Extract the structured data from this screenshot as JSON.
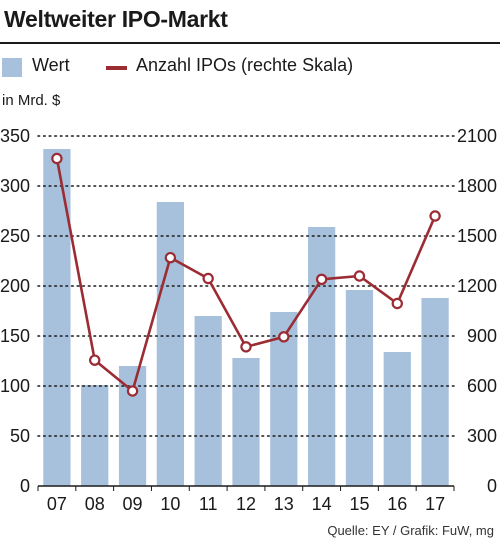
{
  "header": {
    "title": "Weltweiter IPO-Markt"
  },
  "legend": {
    "bar_label": "Wert",
    "line_label": "Anzahl IPOs (rechte Skala)"
  },
  "unit_label": "in Mrd. $",
  "source": "Quelle: EY / Grafik: FuW, mg",
  "colors": {
    "bar": "#a7c0dc",
    "line": "#9b2c34",
    "marker_fill": "#ffffff"
  },
  "chart_data": {
    "type": "bar",
    "title": "Weltweiter IPO-Markt",
    "categories": [
      "07",
      "08",
      "09",
      "10",
      "11",
      "12",
      "13",
      "14",
      "15",
      "16",
      "17"
    ],
    "grid": true,
    "legend_position": "top-left",
    "y_left": {
      "label": "in Mrd. $",
      "range": [
        0,
        350
      ],
      "ticks": [
        0,
        50,
        100,
        150,
        200,
        250,
        300,
        350
      ]
    },
    "y_right": {
      "label": "",
      "range": [
        0,
        2100
      ],
      "ticks": [
        0,
        300,
        600,
        900,
        1200,
        1500,
        1800,
        2100
      ]
    },
    "series": [
      {
        "name": "Wert",
        "type": "bar",
        "axis": "left",
        "values": [
          337,
          101,
          120,
          284,
          170,
          128,
          174,
          259,
          196,
          134,
          188
        ]
      },
      {
        "name": "Anzahl IPOs (rechte Skala)",
        "type": "line",
        "axis": "right",
        "values": [
          1965,
          755,
          570,
          1370,
          1245,
          835,
          895,
          1240,
          1260,
          1095,
          1620
        ]
      }
    ]
  }
}
